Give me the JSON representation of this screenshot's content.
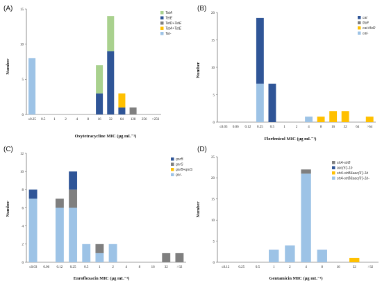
{
  "chart_data": [
    {
      "type": "bar",
      "stacked": true,
      "panel_label": "(A)",
      "xlabel": "Oxytetracycline MIC (μg mL⁻¹)",
      "ylabel": "Number",
      "ylim": [
        0,
        15
      ],
      "yticks": [
        0,
        5,
        10,
        15
      ],
      "legend_position": "top-right",
      "categories": [
        "≤0.25",
        "0.5",
        "1",
        "2",
        "4",
        "8",
        "16",
        "32",
        "64",
        "128",
        "256",
        ">256"
      ],
      "series": [
        {
          "name": "Tet-",
          "color": "#9dc3e6",
          "values": [
            8,
            0,
            0,
            0,
            0,
            0,
            0,
            0,
            0,
            0,
            0,
            0
          ]
        },
        {
          "name": "TetE",
          "color": "#2f5597",
          "values": [
            0,
            0,
            0,
            0,
            0,
            0,
            3,
            9,
            1,
            0,
            0,
            0
          ]
        },
        {
          "name": "TetA+TetE",
          "color": "#ffc000",
          "values": [
            0,
            0,
            0,
            0,
            0,
            0,
            0,
            0,
            2,
            0,
            0,
            0
          ]
        },
        {
          "name": "TetD+TetE",
          "color": "#7f7f7f",
          "values": [
            0,
            0,
            0,
            0,
            0,
            0,
            0,
            0,
            0,
            1,
            0,
            0
          ]
        },
        {
          "name": "TetA",
          "color": "#a9d18e",
          "values": [
            0,
            0,
            0,
            0,
            0,
            0,
            4,
            5,
            0,
            0,
            0,
            0
          ]
        }
      ],
      "legend_order": [
        "TetA",
        "TetE",
        "TetD+TetE",
        "TetA+TetE",
        "Tet-"
      ]
    },
    {
      "type": "bar",
      "stacked": true,
      "panel_label": "(B)",
      "xlabel": "Florfenicol MIC (μg mL⁻¹)",
      "ylabel": "Number",
      "ylim": [
        0,
        20
      ],
      "yticks": [
        0,
        5,
        10,
        15,
        20
      ],
      "legend_position": "top-right",
      "categories": [
        "≤0.03",
        "0.06",
        "0.12",
        "0.25",
        "0.5",
        "1",
        "2",
        "4",
        "8",
        "16",
        "32",
        "64",
        ">64"
      ],
      "series": [
        {
          "name": "cat-",
          "color": "#9dc3e6",
          "values": [
            0,
            0,
            0,
            7,
            0,
            0,
            0,
            1,
            0,
            0,
            0,
            0,
            0
          ]
        },
        {
          "name": "cat",
          "color": "#2f5597",
          "values": [
            0,
            0,
            0,
            12,
            7,
            0,
            0,
            0,
            0,
            0,
            0,
            0,
            0
          ]
        },
        {
          "name": "floR",
          "color": "#7f7f7f",
          "values": [
            0,
            0,
            0,
            0,
            0,
            0,
            0,
            0,
            0,
            0,
            0,
            0,
            0
          ]
        },
        {
          "name": "cat+floR",
          "color": "#ffc000",
          "values": [
            0,
            0,
            0,
            0,
            0,
            0,
            0,
            0,
            1,
            2,
            2,
            0,
            1
          ]
        }
      ],
      "legend_order": [
        "cat",
        "floR",
        "cat+floR",
        "cat-"
      ]
    },
    {
      "type": "bar",
      "stacked": true,
      "panel_label": "(C)",
      "xlabel": "Enrofloxacin MIC (μg mL⁻¹)",
      "ylabel": "Number",
      "ylim": [
        0,
        12
      ],
      "yticks": [
        0,
        2,
        4,
        6,
        8,
        10,
        12
      ],
      "legend_position": "top-right",
      "categories": [
        "≤0.03",
        "0.06",
        "0.12",
        "0.25",
        "0.5",
        "1",
        "2",
        "4",
        "8",
        "16",
        "32",
        ">32"
      ],
      "series": [
        {
          "name": "qnr-",
          "color": "#9dc3e6",
          "values": [
            7,
            0,
            6,
            6,
            2,
            1,
            2,
            0,
            0,
            0,
            0,
            0
          ]
        },
        {
          "name": "qnrS",
          "color": "#7f7f7f",
          "values": [
            0,
            0,
            1,
            2,
            0,
            1,
            0,
            0,
            0,
            0,
            1,
            1
          ]
        },
        {
          "name": "qnrB",
          "color": "#2f5597",
          "values": [
            1,
            0,
            0,
            2,
            0,
            0,
            0,
            0,
            0,
            0,
            0,
            0
          ]
        },
        {
          "name": "qnrB+qnrS",
          "color": "#ffc000",
          "values": [
            0,
            0,
            0,
            0,
            0,
            0,
            0,
            0,
            0,
            0,
            0,
            0
          ]
        }
      ],
      "legend_order": [
        "qnrB",
        "qnrS",
        "qnrB+qnrS",
        "qnr-"
      ]
    },
    {
      "type": "bar",
      "stacked": true,
      "panel_label": "(D)",
      "xlabel": "Gentamicin MIC (μg mL⁻¹)",
      "ylabel": "Number",
      "ylim": [
        0,
        25
      ],
      "yticks": [
        0,
        5,
        10,
        15,
        20,
        25
      ],
      "legend_position": "top-right",
      "categories": [
        "≤0.12",
        "0.25",
        "0.5",
        "1",
        "2",
        "4",
        "8",
        "16",
        "32",
        ">32"
      ],
      "series": [
        {
          "name": "strA-strB&aac(6')-1b-",
          "color": "#9dc3e6",
          "values": [
            0,
            0,
            0,
            3,
            4,
            21,
            3,
            0,
            0,
            0
          ]
        },
        {
          "name": "strA-strB",
          "color": "#7f7f7f",
          "values": [
            0,
            0,
            0,
            0,
            0,
            1,
            0,
            0,
            0,
            0
          ]
        },
        {
          "name": "aac(6')-1b",
          "color": "#2f5597",
          "values": [
            0,
            0,
            0,
            0,
            0,
            0,
            0,
            0,
            0,
            0
          ]
        },
        {
          "name": "strA-strB&aac(6')-1b",
          "color": "#ffc000",
          "values": [
            0,
            0,
            0,
            0,
            0,
            0,
            0,
            0,
            1,
            0
          ]
        }
      ],
      "legend_order": [
        "strA-strB",
        "aac(6')-1b",
        "strA-strB&aac(6')-1b",
        "strA-strB&aac(6')-1b-"
      ]
    }
  ]
}
